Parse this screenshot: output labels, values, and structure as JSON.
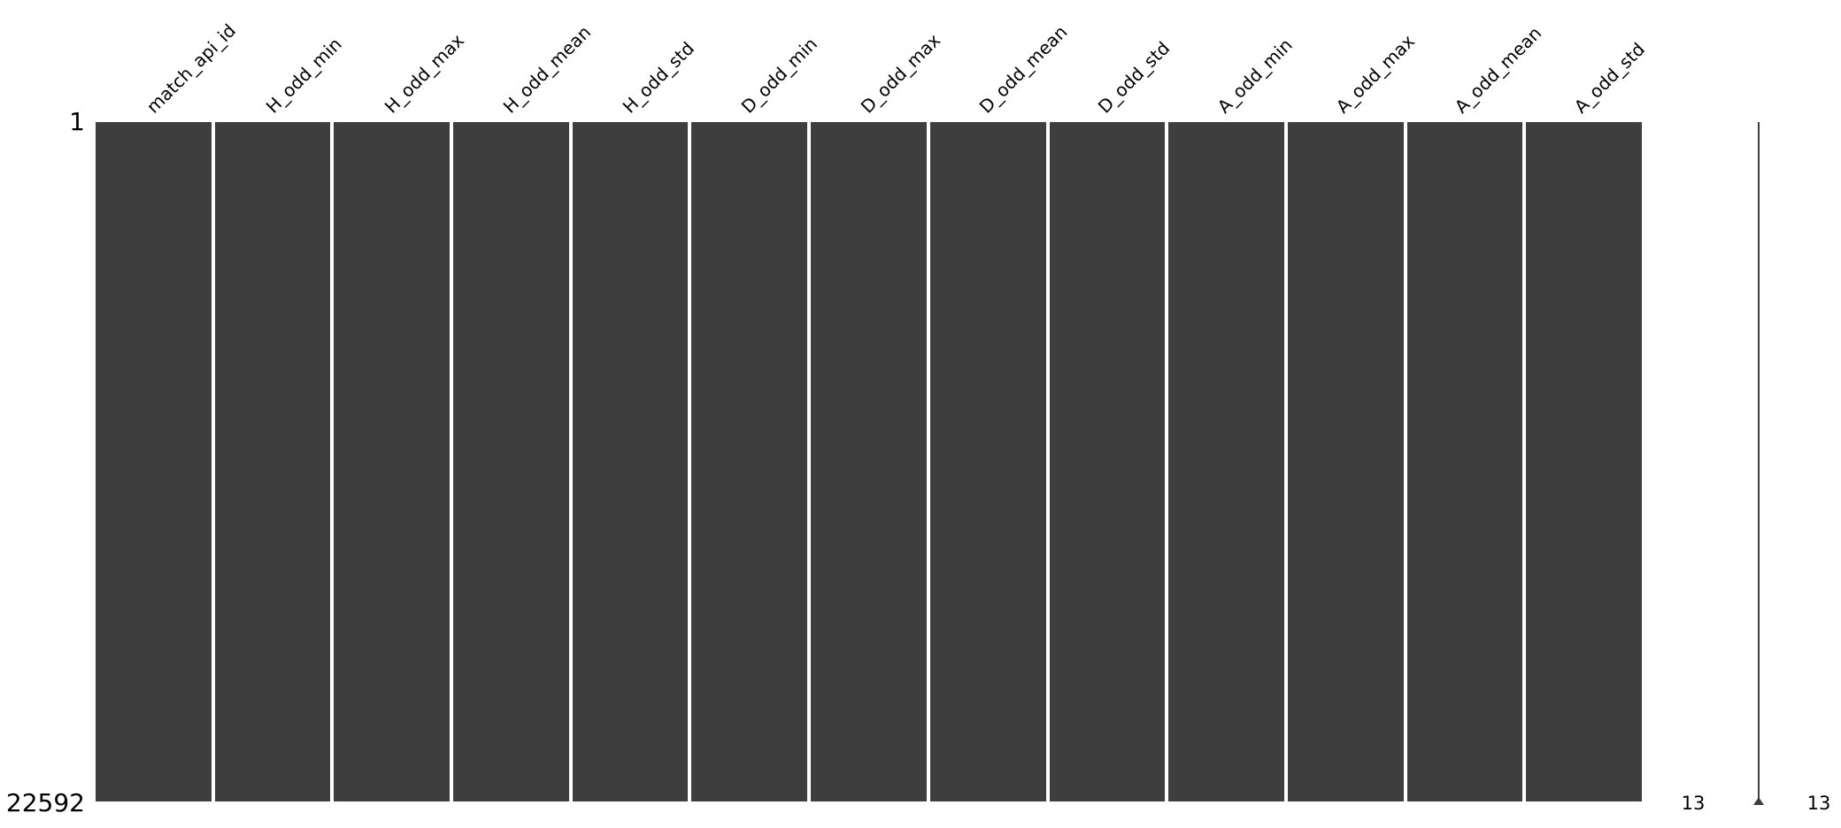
{
  "figure": {
    "background_color": "#ffffff",
    "bar_color": "#3e3e3e",
    "divider_color": "#ffffff",
    "text_color": "#000000"
  },
  "chart_data": {
    "type": "heatmap",
    "subtype": "missingno-nullity-matrix",
    "title": "",
    "xlabel": "",
    "ylabel": "",
    "columns": [
      "match_api_id",
      "H_odd_min",
      "H_odd_max",
      "H_odd_mean",
      "H_odd_std",
      "D_odd_min",
      "D_odd_max",
      "D_odd_mean",
      "D_odd_std",
      "A_odd_min",
      "A_odd_max",
      "A_odd_mean",
      "A_odd_std"
    ],
    "n_columns": 13,
    "row_range": [
      1,
      22592
    ],
    "y_tick_labels": [
      "1",
      "22592"
    ],
    "missing_fraction_per_column": [
      0,
      0,
      0,
      0,
      0,
      0,
      0,
      0,
      0,
      0,
      0,
      0,
      0
    ],
    "grid": false,
    "legend": false,
    "sparkline": {
      "description_values": {
        "min_nonnull_per_row": 13,
        "max_nonnull_per_row": 13
      },
      "min_label": "13",
      "max_label": "13"
    }
  }
}
